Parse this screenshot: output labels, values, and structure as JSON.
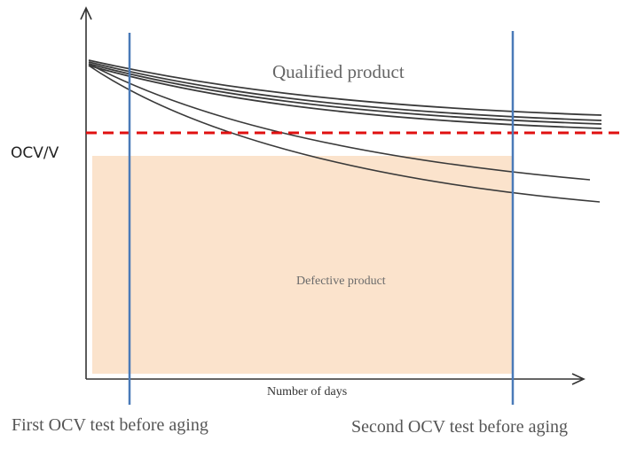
{
  "diagram": {
    "y_axis_label": "OCV/V",
    "x_axis_label": "Number of days",
    "qualified_label": "Qualified product",
    "defective_label": "Defective product",
    "first_test_label": "First OCV test before aging",
    "second_test_label": "Second OCV test before aging"
  },
  "colors": {
    "axis": "#333333",
    "curve": "#3a3a3a",
    "threshold": "#e01010",
    "test_line": "#4a7ab8",
    "defective_region": "#fbe3cc",
    "label_text": "#555555"
  }
}
